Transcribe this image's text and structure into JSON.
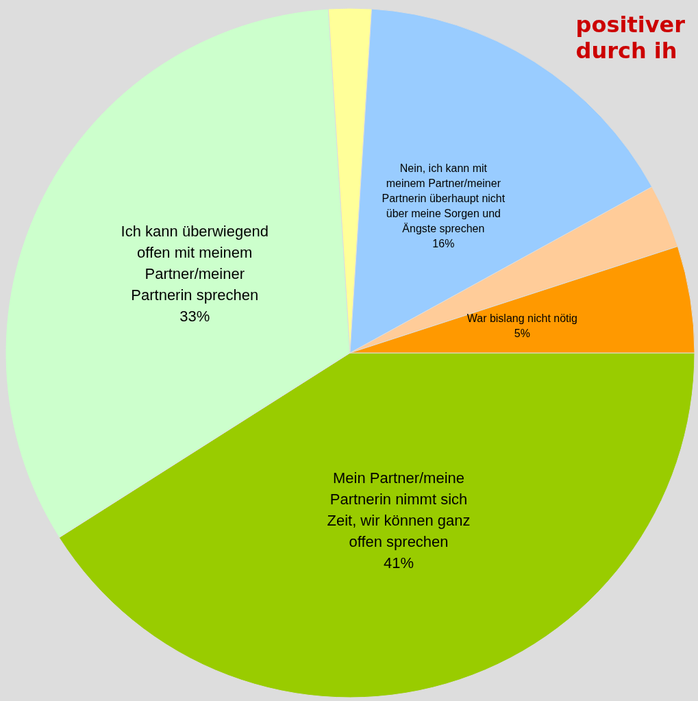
{
  "chart_data": {
    "type": "pie",
    "title": "positiver\ndurch ih",
    "categories": [
      "Mein Partner/meine\nPartnerin nimmt sich\nZeit, wir können ganz\noffen sprechen",
      "Ich kann überwiegend\noffen mit meinem\nPartner/meiner\nPartnerin sprechen",
      null,
      "Nein, ich kann mit\nmeinem Partner/meiner\nPartnerin überhaupt nicht\nüber meine Sorgen und\nÄngste sprechen",
      null,
      "War bislang nicht nötig"
    ],
    "values": [
      41,
      33,
      2,
      16,
      3,
      5
    ],
    "colors": [
      "#99cc00",
      "#ccffcc",
      "#ffff99",
      "#99ccff",
      "#ffcc99",
      "#ff9900"
    ],
    "value_labels": [
      "41%",
      "33%",
      null,
      "16%",
      null,
      "5%"
    ],
    "legend": false
  }
}
